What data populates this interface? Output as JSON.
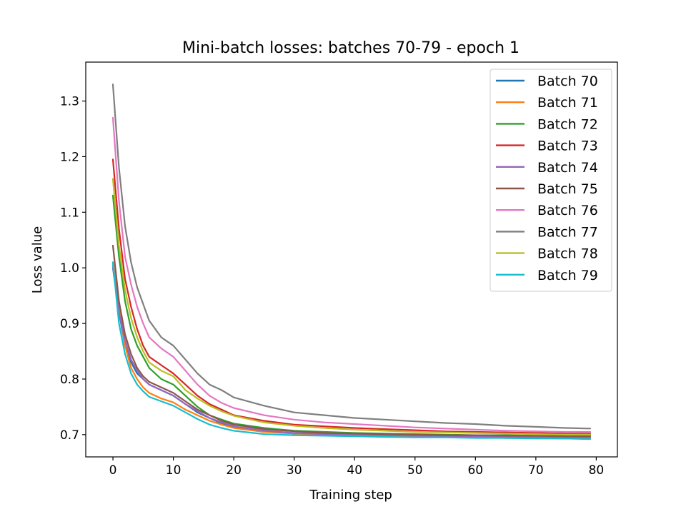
{
  "chart_data": {
    "type": "line",
    "title": "Mini-batch losses: batches 70-79 - epoch 1",
    "xlabel": "Training step",
    "ylabel": "Loss value",
    "xlim": [
      -4.5,
      83.5
    ],
    "ylim": [
      0.66,
      1.37
    ],
    "x_ticks": [
      0,
      10,
      20,
      30,
      40,
      50,
      60,
      70,
      80
    ],
    "y_ticks": [
      0.7,
      0.8,
      0.9,
      1.0,
      1.1,
      1.2,
      1.3
    ],
    "x_tick_labels": [
      "0",
      "10",
      "20",
      "30",
      "40",
      "50",
      "60",
      "70",
      "80"
    ],
    "y_tick_labels": [
      "0.7",
      "0.8",
      "0.9",
      "1.0",
      "1.1",
      "1.2",
      "1.3"
    ],
    "grid": false,
    "legend_position": "top-right",
    "x": [
      0,
      1,
      2,
      3,
      4,
      5,
      6,
      8,
      10,
      12,
      14,
      16,
      18,
      20,
      25,
      30,
      35,
      40,
      45,
      50,
      55,
      60,
      65,
      70,
      75,
      79
    ],
    "series": [
      {
        "name": "Batch 70",
        "color": "#1f77b4",
        "values": [
          1.0,
          0.92,
          0.86,
          0.83,
          0.81,
          0.8,
          0.79,
          0.78,
          0.77,
          0.755,
          0.74,
          0.73,
          0.72,
          0.714,
          0.706,
          0.702,
          0.7,
          0.699,
          0.698,
          0.697,
          0.696,
          0.695,
          0.694,
          0.694,
          0.693,
          0.693
        ]
      },
      {
        "name": "Batch 71",
        "color": "#ff7f0e",
        "values": [
          1.01,
          0.93,
          0.86,
          0.82,
          0.8,
          0.785,
          0.775,
          0.765,
          0.758,
          0.745,
          0.735,
          0.725,
          0.718,
          0.712,
          0.705,
          0.702,
          0.7,
          0.699,
          0.698,
          0.697,
          0.697,
          0.696,
          0.695,
          0.695,
          0.694,
          0.694
        ]
      },
      {
        "name": "Batch 72",
        "color": "#2ca02c",
        "values": [
          1.13,
          1.02,
          0.94,
          0.89,
          0.86,
          0.84,
          0.82,
          0.8,
          0.79,
          0.77,
          0.75,
          0.735,
          0.727,
          0.72,
          0.712,
          0.707,
          0.705,
          0.703,
          0.702,
          0.701,
          0.7,
          0.699,
          0.699,
          0.698,
          0.698,
          0.698
        ]
      },
      {
        "name": "Batch 73",
        "color": "#d62728",
        "values": [
          1.195,
          1.07,
          0.98,
          0.93,
          0.89,
          0.86,
          0.84,
          0.825,
          0.81,
          0.79,
          0.77,
          0.755,
          0.745,
          0.735,
          0.725,
          0.718,
          0.715,
          0.712,
          0.71,
          0.708,
          0.706,
          0.705,
          0.704,
          0.703,
          0.702,
          0.702
        ]
      },
      {
        "name": "Batch 74",
        "color": "#9467bd",
        "values": [
          1.005,
          0.92,
          0.87,
          0.835,
          0.815,
          0.8,
          0.79,
          0.78,
          0.77,
          0.755,
          0.742,
          0.73,
          0.722,
          0.715,
          0.707,
          0.703,
          0.701,
          0.7,
          0.699,
          0.698,
          0.697,
          0.697,
          0.696,
          0.696,
          0.695,
          0.695
        ]
      },
      {
        "name": "Batch 75",
        "color": "#8c564b",
        "values": [
          1.04,
          0.94,
          0.88,
          0.845,
          0.82,
          0.805,
          0.795,
          0.785,
          0.775,
          0.76,
          0.745,
          0.735,
          0.725,
          0.718,
          0.71,
          0.706,
          0.703,
          0.702,
          0.701,
          0.7,
          0.699,
          0.699,
          0.698,
          0.698,
          0.697,
          0.697
        ]
      },
      {
        "name": "Batch 76",
        "color": "#e377c2",
        "values": [
          1.27,
          1.12,
          1.02,
          0.97,
          0.93,
          0.9,
          0.875,
          0.855,
          0.84,
          0.815,
          0.79,
          0.77,
          0.757,
          0.748,
          0.735,
          0.727,
          0.722,
          0.719,
          0.716,
          0.713,
          0.711,
          0.709,
          0.707,
          0.706,
          0.705,
          0.705
        ]
      },
      {
        "name": "Batch 77",
        "color": "#7f7f7f",
        "values": [
          1.33,
          1.18,
          1.075,
          1.01,
          0.965,
          0.935,
          0.905,
          0.875,
          0.86,
          0.835,
          0.81,
          0.79,
          0.78,
          0.767,
          0.752,
          0.74,
          0.735,
          0.73,
          0.727,
          0.724,
          0.721,
          0.719,
          0.716,
          0.714,
          0.712,
          0.711
        ]
      },
      {
        "name": "Batch 78",
        "color": "#bcbd22",
        "values": [
          1.16,
          1.04,
          0.96,
          0.91,
          0.875,
          0.85,
          0.83,
          0.815,
          0.805,
          0.78,
          0.765,
          0.752,
          0.742,
          0.734,
          0.722,
          0.716,
          0.712,
          0.709,
          0.707,
          0.705,
          0.704,
          0.703,
          0.702,
          0.701,
          0.7,
          0.7
        ]
      },
      {
        "name": "Batch 79",
        "color": "#17becf",
        "values": [
          1.01,
          0.9,
          0.845,
          0.81,
          0.79,
          0.778,
          0.768,
          0.76,
          0.752,
          0.74,
          0.728,
          0.718,
          0.712,
          0.707,
          0.701,
          0.699,
          0.698,
          0.697,
          0.696,
          0.695,
          0.695,
          0.694,
          0.694,
          0.693,
          0.693,
          0.692
        ]
      }
    ]
  }
}
